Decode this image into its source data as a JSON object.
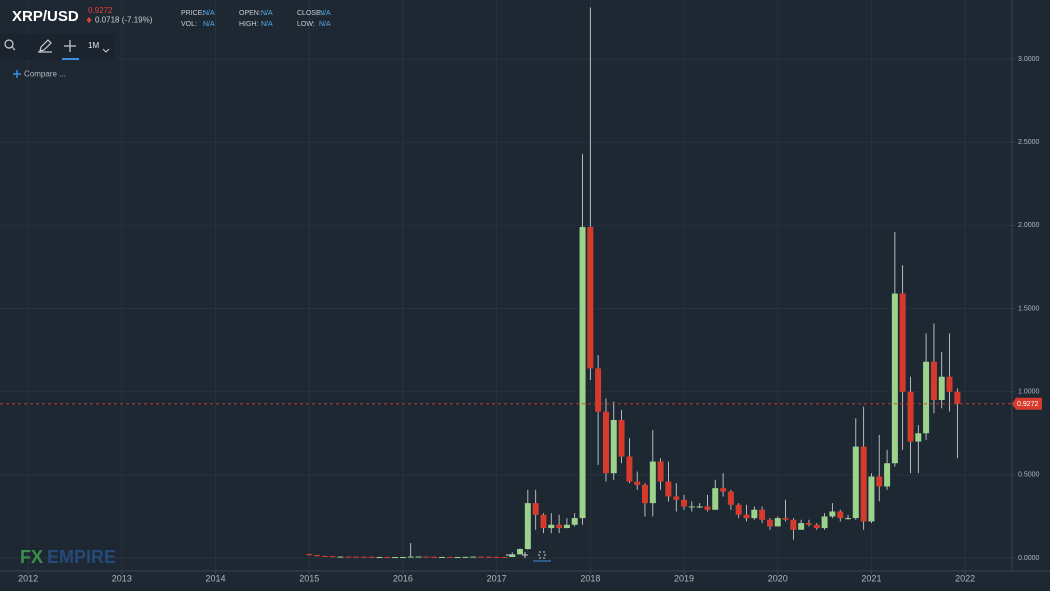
{
  "header": {
    "symbol": "XRP/USD",
    "change": "0.0718 (-7.19%)",
    "stats": [
      {
        "label": "PRICE:",
        "value": "N/A"
      },
      {
        "label": "VOL:",
        "value": "N/A"
      },
      {
        "label": "OPEN:",
        "value": "N/A"
      },
      {
        "label": "HIGH:",
        "value": "N/A"
      },
      {
        "label": "CLOSE:",
        "value": "N/A"
      },
      {
        "label": "LOW:",
        "value": "N/A"
      }
    ]
  },
  "toolbar": {
    "interval": "1M",
    "compare": "Compare ..."
  },
  "watermark": {
    "fx": "FX",
    "rest": "EMPIRE"
  },
  "chart_data": {
    "type": "candlestick",
    "up_color": "#9bd38c",
    "down_color": "#d63a2c",
    "grid": true,
    "last_price": 0.9272,
    "last_color": "#d63a2c",
    "xlim": [
      2011.7,
      2022.5
    ],
    "xticks": [
      2012,
      2013,
      2014,
      2015,
      2016,
      2017,
      2018,
      2019,
      2020,
      2021,
      2022
    ],
    "ylim": [
      -0.078,
      3.355
    ],
    "yticks": [
      {
        "value": 0,
        "label": "0.0000"
      },
      {
        "value": 0.5,
        "label": "0.5000"
      },
      {
        "value": 1,
        "label": "1.0000"
      },
      {
        "value": 1.5,
        "label": "1.5000"
      },
      {
        "value": 2,
        "label": "2.0000"
      },
      {
        "value": 2.5,
        "label": "2.5000"
      },
      {
        "value": 3,
        "label": "3.0000"
      }
    ],
    "x": [
      2015,
      2015.083,
      2015.167,
      2015.25,
      2015.333,
      2015.417,
      2015.5,
      2015.583,
      2015.667,
      2015.75,
      2015.833,
      2015.917,
      2016,
      2016.083,
      2016.167,
      2016.25,
      2016.333,
      2016.417,
      2016.5,
      2016.583,
      2016.667,
      2016.75,
      2016.833,
      2016.917,
      2017,
      2017.083,
      2017.167,
      2017.25,
      2017.333,
      2017.417,
      2017.5,
      2017.583,
      2017.667,
      2017.75,
      2017.833,
      2017.917,
      2018,
      2018.083,
      2018.167,
      2018.25,
      2018.333,
      2018.417,
      2018.5,
      2018.583,
      2018.667,
      2018.75,
      2018.833,
      2018.917,
      2019,
      2019.083,
      2019.167,
      2019.25,
      2019.333,
      2019.417,
      2019.5,
      2019.583,
      2019.667,
      2019.75,
      2019.833,
      2019.917,
      2020,
      2020.083,
      2020.167,
      2020.25,
      2020.333,
      2020.417,
      2020.5,
      2020.583,
      2020.667,
      2020.75,
      2020.833,
      2020.917,
      2021,
      2021.083,
      2021.167,
      2021.25,
      2021.333,
      2021.417,
      2021.5,
      2021.583,
      2021.667,
      2021.75,
      2021.833,
      2021.917
    ],
    "open": [
      0.024,
      0.017,
      0.012,
      0.011,
      0.008,
      0.0085,
      0.008,
      0.0078,
      0.0068,
      0.0062,
      0.0062,
      0.0057,
      0.006,
      0.006,
      0.0085,
      0.009,
      0.0075,
      0.0065,
      0.0065,
      0.006,
      0.006,
      0.007,
      0.0085,
      0.0075,
      0.0065,
      0.0064,
      0.0062,
      0.022,
      0.054,
      0.33,
      0.26,
      0.18,
      0.2,
      0.18,
      0.2,
      0.24,
      1.99,
      1.14,
      0.88,
      0.51,
      0.83,
      0.61,
      0.46,
      0.44,
      0.33,
      0.58,
      0.46,
      0.37,
      0.35,
      0.31,
      0.31,
      0.31,
      0.29,
      0.42,
      0.4,
      0.32,
      0.26,
      0.24,
      0.29,
      0.23,
      0.19,
      0.24,
      0.23,
      0.17,
      0.21,
      0.2,
      0.18,
      0.25,
      0.28,
      0.24,
      0.24,
      0.67,
      0.22,
      0.49,
      0.43,
      0.57,
      1.59,
      1,
      0.7,
      0.75,
      1.18,
      0.95,
      1.09,
      1
    ],
    "high": [
      0.026,
      0.019,
      0.014,
      0.012,
      0.01,
      0.01,
      0.009,
      0.009,
      0.008,
      0.007,
      0.007,
      0.0065,
      0.0068,
      0.09,
      0.0095,
      0.0098,
      0.0085,
      0.007,
      0.007,
      0.0068,
      0.0075,
      0.0088,
      0.009,
      0.008,
      0.0071,
      0.0068,
      0.034,
      0.058,
      0.41,
      0.41,
      0.27,
      0.27,
      0.26,
      0.24,
      0.27,
      2.43,
      3.31,
      1.22,
      0.96,
      0.94,
      0.89,
      0.72,
      0.52,
      0.45,
      0.77,
      0.6,
      0.58,
      0.45,
      0.38,
      0.34,
      0.33,
      0.38,
      0.47,
      0.51,
      0.41,
      0.33,
      0.32,
      0.31,
      0.31,
      0.24,
      0.25,
      0.35,
      0.24,
      0.23,
      0.23,
      0.21,
      0.27,
      0.33,
      0.29,
      0.26,
      0.84,
      0.91,
      0.51,
      0.74,
      0.65,
      1.96,
      1.76,
      1.09,
      0.8,
      1.35,
      1.41,
      1.24,
      1.35,
      1.02
    ],
    "low": [
      0.016,
      0.011,
      0.01,
      0.0075,
      0.0078,
      0.0075,
      0.0072,
      0.0062,
      0.0058,
      0.0058,
      0.0052,
      0.0055,
      0.0055,
      0.0057,
      0.008,
      0.007,
      0.006,
      0.006,
      0.0055,
      0.0055,
      0.0058,
      0.0068,
      0.007,
      0.006,
      0.0059,
      0.0058,
      0.0061,
      0.021,
      0.05,
      0.17,
      0.15,
      0.15,
      0.15,
      0.18,
      0.19,
      0.2,
      1.07,
      0.56,
      0.46,
      0.47,
      0.57,
      0.45,
      0.41,
      0.25,
      0.25,
      0.41,
      0.34,
      0.28,
      0.29,
      0.28,
      0.3,
      0.28,
      0.29,
      0.37,
      0.29,
      0.24,
      0.22,
      0.23,
      0.21,
      0.17,
      0.19,
      0.22,
      0.11,
      0.17,
      0.19,
      0.17,
      0.17,
      0.24,
      0.22,
      0.23,
      0.23,
      0.17,
      0.21,
      0.34,
      0.41,
      0.55,
      0.65,
      0.51,
      0.51,
      0.71,
      0.87,
      0.9,
      0.88,
      0.6
    ],
    "close": [
      0.017,
      0.012,
      0.011,
      0.008,
      0.0085,
      0.008,
      0.0078,
      0.0068,
      0.0062,
      0.0062,
      0.0057,
      0.006,
      0.006,
      0.0085,
      0.009,
      0.0075,
      0.0065,
      0.0065,
      0.006,
      0.006,
      0.007,
      0.0085,
      0.0075,
      0.0065,
      0.0064,
      0.0062,
      0.022,
      0.054,
      0.33,
      0.26,
      0.18,
      0.2,
      0.18,
      0.2,
      0.24,
      1.99,
      1.14,
      0.88,
      0.51,
      0.83,
      0.61,
      0.46,
      0.44,
      0.33,
      0.58,
      0.46,
      0.37,
      0.35,
      0.31,
      0.31,
      0.31,
      0.29,
      0.42,
      0.4,
      0.32,
      0.26,
      0.24,
      0.29,
      0.23,
      0.19,
      0.24,
      0.23,
      0.17,
      0.21,
      0.2,
      0.18,
      0.25,
      0.28,
      0.24,
      0.24,
      0.67,
      0.22,
      0.49,
      0.43,
      0.57,
      1.59,
      1,
      0.7,
      0.75,
      1.18,
      0.95,
      1.09,
      1,
      0.9272
    ]
  }
}
